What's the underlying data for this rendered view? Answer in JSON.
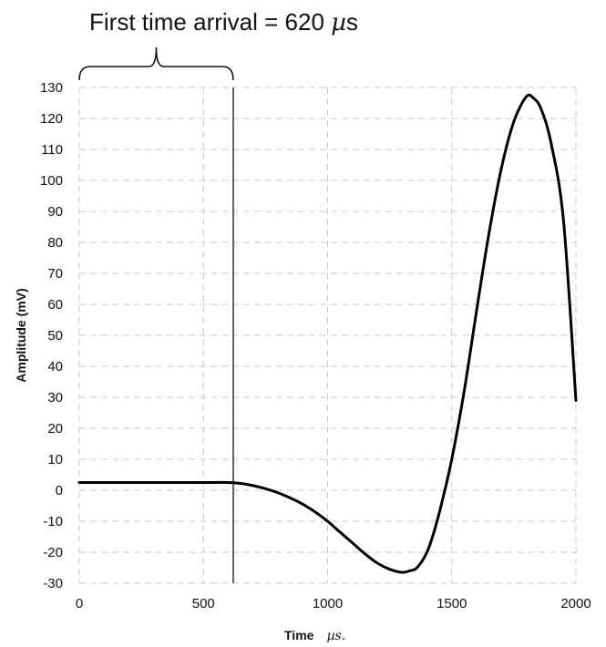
{
  "chart_data": {
    "type": "line",
    "title": "",
    "xlabel": "Time",
    "xlabel_unit": "µs.",
    "ylabel": "Amplitude (mV)",
    "xlim": [
      0,
      2000
    ],
    "ylim": [
      -30,
      130
    ],
    "x_ticks": [
      "0",
      "500",
      "1000",
      "1500",
      "2000"
    ],
    "y_ticks": [
      "130",
      "120",
      "110",
      "100",
      "90",
      "80",
      "70",
      "60",
      "50",
      "40",
      "30",
      "20",
      "10",
      "0",
      "-10",
      "-20",
      "-30"
    ],
    "grid": true,
    "series": [
      {
        "color": "#000000",
        "x": [
          0,
          100,
          200,
          300,
          400,
          500,
          600,
          650,
          700,
          750,
          800,
          850,
          900,
          950,
          1000,
          1050,
          1100,
          1150,
          1200,
          1250,
          1300,
          1330,
          1360,
          1400,
          1430,
          1460,
          1500,
          1550,
          1600,
          1650,
          1700,
          1750,
          1800,
          1830,
          1860,
          1900,
          1950,
          2000
        ],
        "y": [
          2.5,
          2.5,
          2.5,
          2.5,
          2.5,
          2.5,
          2.5,
          2.2,
          1.5,
          0.5,
          -0.8,
          -2.5,
          -4.5,
          -7,
          -10,
          -13.5,
          -17,
          -20.5,
          -23.5,
          -25.5,
          -26.5,
          -26,
          -25,
          -20,
          -13,
          -4,
          10,
          32,
          58,
          83,
          104,
          119,
          127,
          126.5,
          123,
          112,
          87,
          29
        ]
      }
    ],
    "marker": {
      "x": 620
    },
    "annotation": {
      "text": "First time arrival = 620 ",
      "unit_mu": "µ",
      "unit_s": "s"
    }
  }
}
